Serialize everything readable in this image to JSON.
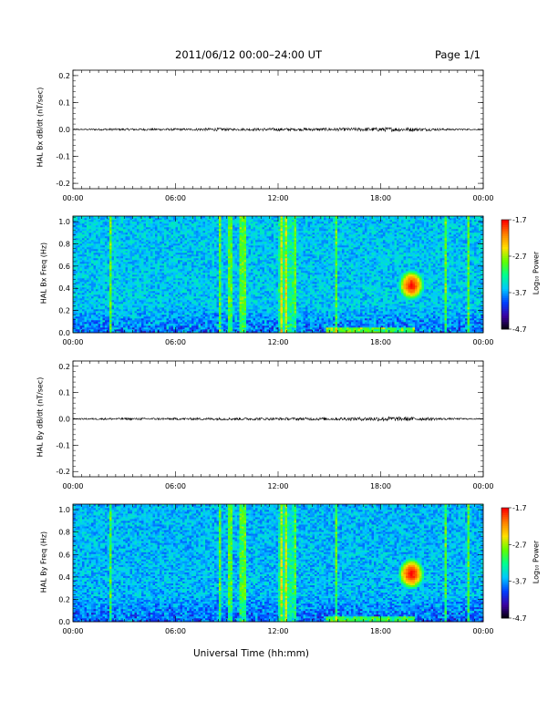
{
  "header": {
    "date_range": "2011/06/12  00:00–24:00 UT",
    "page_label": "Page 1/1"
  },
  "footer": {
    "xlabel": "Universal Time (hh:mm)"
  },
  "colors": {
    "trace": "#000000",
    "axis": "#000000",
    "colorbar_stops": [
      "#000000",
      "#3c00a0",
      "#0040ff",
      "#00c8ff",
      "#00ff90",
      "#60ff00",
      "#ffe000",
      "#ff8000",
      "#ff0000"
    ]
  },
  "chart_data": [
    {
      "type": "line",
      "ylabel": "HAL Bx dB/dt (nT/sec)",
      "xlim": [
        0,
        24
      ],
      "ylim": [
        -0.22,
        0.22
      ],
      "x_tick_labels": [
        "00:00",
        "06:00",
        "12:00",
        "18:00",
        "00:00"
      ],
      "y_ticks": [
        -0.2,
        -0.1,
        0.0,
        0.1,
        0.2
      ],
      "y_tick_labels": [
        "-0.2",
        "-0.1",
        "0.0",
        "0.1",
        "0.2"
      ],
      "baseline": 0.0,
      "activity_hours": [
        [
          0,
          0.002
        ],
        [
          2.2,
          0.004
        ],
        [
          6.6,
          0.004
        ],
        [
          8.6,
          0.006
        ],
        [
          9.2,
          0.004
        ],
        [
          12.0,
          0.006
        ],
        [
          12.8,
          0.005
        ],
        [
          15.8,
          0.006
        ],
        [
          17.0,
          0.007
        ],
        [
          18.5,
          0.008
        ],
        [
          19.6,
          0.007
        ],
        [
          21.7,
          0.004
        ],
        [
          23.9,
          0.002
        ]
      ]
    },
    {
      "type": "heatmap",
      "ylabel": "HAL Bx Freq (Hz)",
      "xlim": [
        0,
        24
      ],
      "ylim": [
        0,
        1.05
      ],
      "x_tick_labels": [
        "00:00",
        "06:00",
        "12:00",
        "18:00",
        "00:00"
      ],
      "y_ticks": [
        0.0,
        0.2,
        0.4,
        0.6,
        0.8,
        1.0
      ],
      "y_tick_labels": [
        "0.0",
        "0.2",
        "0.4",
        "0.6",
        "0.8",
        "1.0"
      ],
      "colorbar": {
        "label": "Log₁₀ Power",
        "range": [
          -4.7,
          -1.7
        ],
        "ticks": [
          -1.7,
          -2.7,
          -3.7,
          -4.7
        ],
        "tick_labels": [
          "-1.7",
          "-2.7",
          "-3.7",
          "-4.7"
        ]
      },
      "background_log_power": -3.55,
      "vertical_bands_hours": [
        2.2,
        8.6,
        9.2,
        9.8,
        10.0,
        12.2,
        12.5,
        13.0,
        15.4,
        21.8,
        23.1
      ],
      "broadband_event_hours": [
        12.0,
        13.0
      ],
      "low_freq_band": {
        "hours": [
          14.8,
          20.0
        ],
        "freq_max": 0.05
      },
      "pc1_event": {
        "center_hours": 19.8,
        "center_freq": 0.43,
        "peak_log_power": -1.8
      }
    },
    {
      "type": "line",
      "ylabel": "HAL By dB/dt (nT/sec)",
      "xlim": [
        0,
        24
      ],
      "ylim": [
        -0.22,
        0.22
      ],
      "x_tick_labels": [
        "00:00",
        "06:00",
        "12:00",
        "18:00",
        "00:00"
      ],
      "y_ticks": [
        -0.2,
        -0.1,
        0.0,
        0.1,
        0.2
      ],
      "y_tick_labels": [
        "-0.2",
        "-0.1",
        "0.0",
        "0.1",
        "0.2"
      ],
      "baseline": 0.0,
      "activity_hours": [
        [
          0,
          0.002
        ],
        [
          2.2,
          0.004
        ],
        [
          6.6,
          0.004
        ],
        [
          8.6,
          0.005
        ],
        [
          12.0,
          0.005
        ],
        [
          15.8,
          0.006
        ],
        [
          17.0,
          0.007
        ],
        [
          18.0,
          0.009
        ],
        [
          19.6,
          0.008
        ],
        [
          21.7,
          0.004
        ],
        [
          23.9,
          0.002
        ]
      ]
    },
    {
      "type": "heatmap",
      "ylabel": "HAL By Freq (Hz)",
      "xlim": [
        0,
        24
      ],
      "ylim": [
        0,
        1.05
      ],
      "x_tick_labels": [
        "00:00",
        "06:00",
        "12:00",
        "18:00",
        "00:00"
      ],
      "y_ticks": [
        0.0,
        0.2,
        0.4,
        0.6,
        0.8,
        1.0
      ],
      "y_tick_labels": [
        "0.0",
        "0.2",
        "0.4",
        "0.6",
        "0.8",
        "1.0"
      ],
      "colorbar": {
        "label": "Log₁₀ Power",
        "range": [
          -4.7,
          -1.7
        ],
        "ticks": [
          -1.7,
          -2.7,
          -3.7,
          -4.7
        ],
        "tick_labels": [
          "-1.7",
          "-2.7",
          "-3.7",
          "-4.7"
        ]
      },
      "background_log_power": -3.6,
      "vertical_bands_hours": [
        2.2,
        8.6,
        9.2,
        9.8,
        10.0,
        12.2,
        12.5,
        13.0,
        15.4,
        21.8,
        23.1
      ],
      "broadband_event_hours": [
        12.0,
        13.0
      ],
      "low_freq_band": {
        "hours": [
          14.8,
          20.0
        ],
        "freq_max": 0.05
      },
      "pc1_event": {
        "center_hours": 19.8,
        "center_freq": 0.43,
        "peak_log_power": -1.75
      }
    }
  ]
}
